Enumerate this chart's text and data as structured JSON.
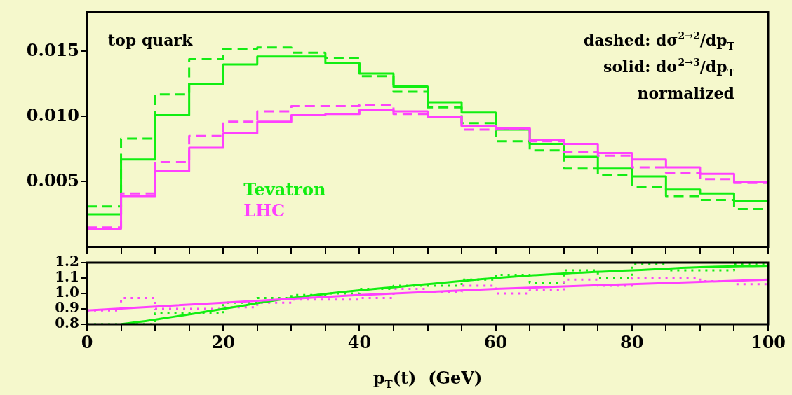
{
  "chart_data": [
    {
      "type": "histogram",
      "annotations": [
        "top quark",
        "dashed: dσ$^{2→2}$/dp$_{T}$",
        "solid: dσ$^{2→3}$/dp$_{T}$",
        "normalized"
      ],
      "bins": [
        0,
        5,
        10,
        15,
        20,
        25,
        30,
        35,
        40,
        45,
        50,
        55,
        60,
        65,
        70,
        75,
        80,
        85,
        90,
        95,
        100
      ],
      "series": [
        {
          "color": "#14ec14",
          "line_style": "dashed",
          "values": [
            0.0031,
            0.0083,
            0.0117,
            0.0144,
            0.0152,
            0.0153,
            0.0149,
            0.0145,
            0.0131,
            0.0119,
            0.0107,
            0.0095,
            0.0081,
            0.0074,
            0.006,
            0.0055,
            0.0046,
            0.0039,
            0.0036,
            0.0029
          ]
        },
        {
          "name": "Tevatron",
          "color": "#11ee11",
          "line_style": "solid",
          "values": [
            0.0025,
            0.0067,
            0.0101,
            0.0125,
            0.014,
            0.0146,
            0.0146,
            0.0141,
            0.0133,
            0.0123,
            0.0111,
            0.0103,
            0.009,
            0.0079,
            0.0069,
            0.006,
            0.0054,
            0.0044,
            0.0041,
            0.0035
          ]
        },
        {
          "color": "#fc44fc",
          "line_style": "dashed",
          "values": [
            0.0015,
            0.0041,
            0.0065,
            0.0085,
            0.0096,
            0.0104,
            0.0108,
            0.0108,
            0.0109,
            0.0102,
            0.01,
            0.009,
            0.0091,
            0.0081,
            0.0073,
            0.007,
            0.0061,
            0.0057,
            0.0052,
            0.0049
          ]
        },
        {
          "name": "LHC",
          "color": "#ff40ff",
          "line_style": "solid",
          "values": [
            0.0014,
            0.0039,
            0.0058,
            0.0076,
            0.0087,
            0.0096,
            0.0101,
            0.0102,
            0.0105,
            0.0104,
            0.01,
            0.0093,
            0.0091,
            0.0082,
            0.0079,
            0.0072,
            0.0067,
            0.0061,
            0.0056,
            0.005
          ]
        }
      ],
      "xlim": [
        0,
        100
      ],
      "xticks": [
        0,
        {
          "value": 5,
          "label": null
        },
        {
          "value": 10,
          "label": null
        },
        {
          "value": 15,
          "label": null
        },
        20,
        {
          "value": 25,
          "label": null
        },
        {
          "value": 30,
          "label": null
        },
        {
          "value": 35,
          "label": null
        },
        40,
        {
          "value": 45,
          "label": null
        },
        {
          "value": 50,
          "label": null
        },
        {
          "value": 55,
          "label": null
        },
        60,
        {
          "value": 65,
          "label": null
        },
        {
          "value": 70,
          "label": null
        },
        {
          "value": 75,
          "label": null
        },
        80,
        {
          "value": 85,
          "label": null
        },
        {
          "value": 90,
          "label": null
        },
        {
          "value": 95,
          "label": null
        },
        100
      ],
      "ylim": [
        0,
        0.018
      ],
      "yticks": [
        0.005,
        {
          "value": 0.01,
          "label": "0.010"
        },
        0.015
      ],
      "tick_labels": "y",
      "legend": "left"
    },
    {
      "type": "line",
      "xlabel": "p$_{T}$(t)  (GeV)",
      "bins": [
        0,
        5,
        10,
        15,
        20,
        25,
        30,
        35,
        40,
        45,
        50,
        55,
        60,
        65,
        70,
        75,
        80,
        85,
        90,
        95,
        100
      ],
      "series": [
        {
          "type": "histogram",
          "color": "#14ec14",
          "line_style": "dotted",
          "values": [
            0.8,
            0.8,
            0.87,
            0.87,
            0.94,
            0.97,
            0.99,
            1.0,
            1.03,
            1.05,
            1.05,
            1.09,
            1.12,
            1.07,
            1.15,
            1.1,
            1.19,
            1.15,
            1.15,
            1.19
          ]
        },
        {
          "type": "histogram",
          "color": "#fc44fc",
          "line_style": "dotted",
          "values": [
            0.89,
            0.97,
            0.9,
            0.9,
            0.91,
            0.94,
            0.96,
            0.96,
            0.97,
            1.03,
            1.01,
            1.05,
            1.0,
            1.02,
            1.09,
            1.05,
            1.1,
            1.1,
            1.08,
            1.06
          ]
        },
        {
          "color": "#11ee11",
          "line_style": "solid",
          "x": [
            5,
            10,
            20,
            30,
            40,
            50,
            60,
            70,
            80,
            90,
            100
          ],
          "values": [
            0.8,
            0.83,
            0.9,
            0.97,
            1.02,
            1.06,
            1.1,
            1.13,
            1.15,
            1.17,
            1.18
          ]
        },
        {
          "color": "#ff40ff",
          "line_style": "solid",
          "x": [
            0,
            20,
            40,
            60,
            80,
            100
          ],
          "values": [
            0.89,
            0.94,
            0.99,
            1.03,
            1.06,
            1.09
          ]
        }
      ],
      "xlim": [
        0,
        100
      ],
      "xticks": [
        0,
        {
          "value": 5,
          "label": null
        },
        {
          "value": 10,
          "label": null
        },
        {
          "value": 15,
          "label": null
        },
        20,
        {
          "value": 25,
          "label": null
        },
        {
          "value": 30,
          "label": null
        },
        {
          "value": 35,
          "label": null
        },
        40,
        {
          "value": 45,
          "label": null
        },
        {
          "value": 50,
          "label": null
        },
        {
          "value": 55,
          "label": null
        },
        60,
        {
          "value": 65,
          "label": null
        },
        {
          "value": 70,
          "label": null
        },
        {
          "value": 75,
          "label": null
        },
        80,
        {
          "value": 85,
          "label": null
        },
        {
          "value": 90,
          "label": null
        },
        {
          "value": 95,
          "label": null
        },
        100
      ],
      "ylim": [
        0.8,
        1.2
      ],
      "yticks": [
        0.8,
        0.9,
        {
          "value": 1,
          "label": "1.0"
        },
        1.1,
        1.2
      ]
    }
  ]
}
